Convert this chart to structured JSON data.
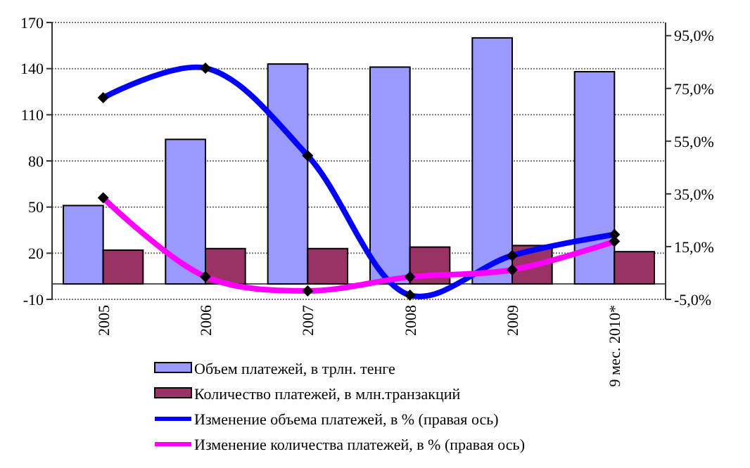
{
  "chart_data": {
    "type": "bar",
    "categories": [
      "2005",
      "2006",
      "2007",
      "2008",
      "2009",
      "9 мес. 2010*"
    ],
    "series": [
      {
        "name": "Объем платежей, в трлн. тенге",
        "color": "#9999ff",
        "values": [
          51,
          94,
          143,
          141,
          160,
          138
        ]
      },
      {
        "name": "Количество платежей, в млн.транзакций",
        "color": "#993366",
        "values": [
          22,
          23,
          23,
          24,
          25,
          21
        ]
      },
      {
        "name": "Изменение объема платежей, в %  (правая ось)",
        "type": "line",
        "axis": "y2",
        "color": "#0000ff",
        "values": [
          71.5,
          82.7,
          49.5,
          -3.4,
          11.6,
          19.6
        ]
      },
      {
        "name": "Изменение количества платежей, в %  (правая ось)",
        "type": "line",
        "axis": "y2",
        "color": "#ff00ff",
        "values": [
          33.5,
          3.6,
          -1.8,
          3.5,
          6.2,
          17
        ]
      }
    ],
    "ylim": [
      -10,
      170
    ],
    "yticks": [
      -10,
      20,
      50,
      80,
      110,
      140,
      170
    ],
    "y2lim": [
      -5,
      100
    ],
    "y2ticks": [
      {
        "value": -5,
        "label": "-5,0%"
      },
      {
        "value": 15,
        "label": "15,0%"
      },
      {
        "value": 35,
        "label": "35,0%"
      },
      {
        "value": 55,
        "label": "55,0%"
      },
      {
        "value": 75,
        "label": "75,0%"
      },
      {
        "value": 95,
        "label": "95,0%"
      }
    ],
    "grid": "y",
    "legend": "bottom",
    "marker": "diamond"
  }
}
